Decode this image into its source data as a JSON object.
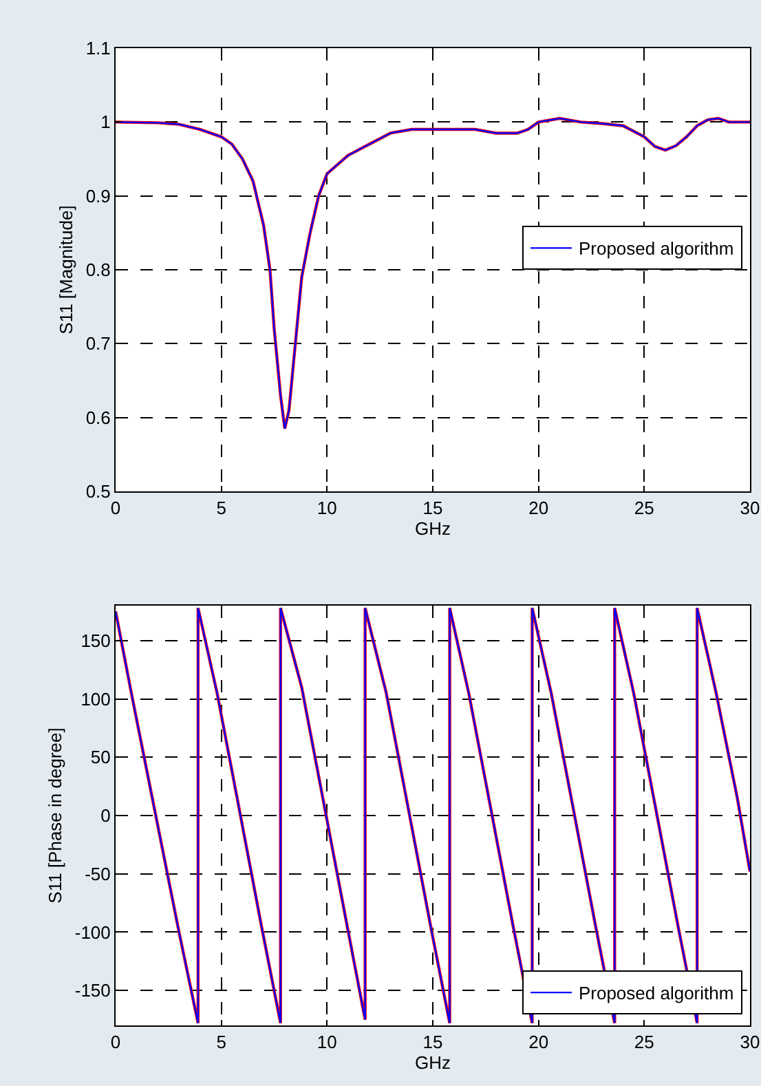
{
  "chart_data": [
    {
      "type": "line",
      "xlabel": "GHz",
      "ylabel": "S11 [Magnitude]",
      "xlim": [
        0,
        30
      ],
      "ylim": [
        0.5,
        1.1
      ],
      "xticks": [
        0,
        5,
        10,
        15,
        20,
        25,
        30
      ],
      "yticks": [
        0.5,
        0.6,
        0.7,
        0.8,
        0.9,
        1,
        1.1
      ],
      "grid": true,
      "legend": "right",
      "line_style": "solid",
      "x": [
        0,
        2,
        3,
        4,
        5,
        5.5,
        6,
        6.5,
        7,
        7.3,
        7.5,
        7.8,
        8,
        8.2,
        8.5,
        8.8,
        9.2,
        9.6,
        10,
        11,
        12,
        13,
        14,
        15,
        16,
        17,
        18,
        19,
        19.5,
        20,
        21,
        22,
        23,
        24,
        25,
        25.5,
        26,
        26.5,
        27,
        27.5,
        28,
        28.5,
        29,
        30
      ],
      "series": [
        {
          "color": "#ff0000",
          "values": [
            1.0,
            0.999,
            0.997,
            0.99,
            0.98,
            0.97,
            0.95,
            0.92,
            0.86,
            0.8,
            0.72,
            0.63,
            0.585,
            0.61,
            0.7,
            0.79,
            0.85,
            0.9,
            0.93,
            0.955,
            0.97,
            0.985,
            0.99,
            0.99,
            0.99,
            0.99,
            0.985,
            0.985,
            0.99,
            1.0,
            1.005,
            1.0,
            0.998,
            0.995,
            0.98,
            0.967,
            0.962,
            0.968,
            0.98,
            0.995,
            1.003,
            1.005,
            1.0,
            1.0
          ]
        },
        {
          "name": "Proposed algorithm",
          "color": "#0000ff",
          "values": [
            1.0,
            0.999,
            0.997,
            0.99,
            0.98,
            0.97,
            0.95,
            0.92,
            0.86,
            0.8,
            0.72,
            0.63,
            0.585,
            0.61,
            0.7,
            0.79,
            0.85,
            0.9,
            0.93,
            0.955,
            0.97,
            0.985,
            0.99,
            0.99,
            0.99,
            0.99,
            0.985,
            0.985,
            0.99,
            1.0,
            1.005,
            1.0,
            0.998,
            0.995,
            0.98,
            0.967,
            0.962,
            0.968,
            0.98,
            0.995,
            1.003,
            1.005,
            1.0,
            1.0
          ]
        }
      ]
    },
    {
      "type": "line",
      "xlabel": "GHz",
      "ylabel": "S11 [Phase in degree]",
      "xlim": [
        0,
        30
      ],
      "ylim": [
        -180,
        180
      ],
      "xticks": [
        0,
        5,
        10,
        15,
        20,
        25,
        30
      ],
      "yticks": [
        -150,
        -100,
        -50,
        0,
        50,
        100,
        150
      ],
      "grid": true,
      "legend": "bottom right",
      "line_style": "solid",
      "x": [
        0,
        0.8,
        1.9,
        3.0,
        3.9,
        3.9,
        4.8,
        5.8,
        6.9,
        7.8,
        7.8,
        8.8,
        9.8,
        10.9,
        11.8,
        11.8,
        12.8,
        13.8,
        14.9,
        15.8,
        15.8,
        16.7,
        17.7,
        18.8,
        19.7,
        19.7,
        20.6,
        21.6,
        22.7,
        23.6,
        23.6,
        24.5,
        25.5,
        26.6,
        27.5,
        27.5,
        28.4,
        29.4,
        30
      ],
      "series": [
        {
          "color": "#ff0000",
          "values": [
            175,
            100,
            0,
            -100,
            -178,
            178,
            105,
            10,
            -95,
            -178,
            178,
            110,
            15,
            -90,
            -175,
            178,
            105,
            10,
            -95,
            -178,
            178,
            105,
            10,
            -95,
            -178,
            178,
            105,
            10,
            -95,
            -178,
            178,
            105,
            10,
            -95,
            -178,
            178,
            105,
            15,
            -48
          ]
        },
        {
          "name": "Proposed algorithm",
          "color": "#0000ff",
          "values": [
            175,
            100,
            0,
            -100,
            -178,
            178,
            105,
            10,
            -95,
            -178,
            178,
            110,
            15,
            -90,
            -175,
            178,
            105,
            10,
            -95,
            -178,
            178,
            105,
            10,
            -95,
            -178,
            178,
            105,
            10,
            -95,
            -178,
            178,
            105,
            10,
            -95,
            -178,
            178,
            105,
            15,
            -48
          ]
        }
      ]
    }
  ]
}
